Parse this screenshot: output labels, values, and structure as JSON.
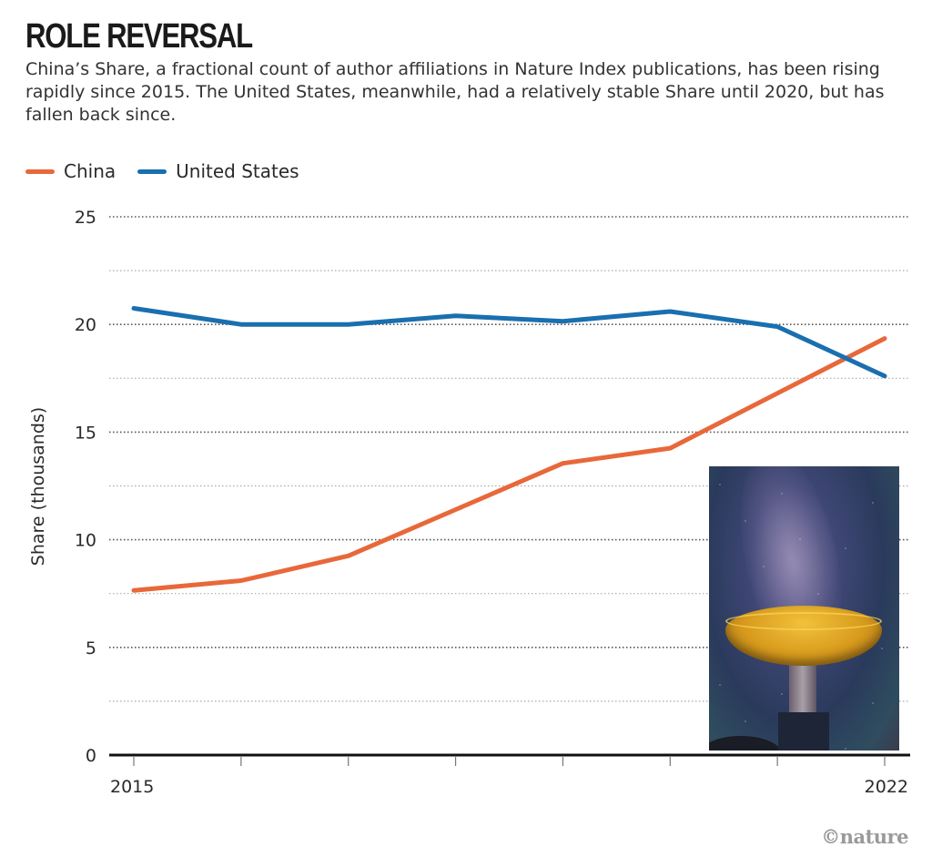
{
  "header": {
    "title": "ROLE REVERSAL",
    "subtitle": "China’s Share, a fractional count of author affiliations in Nature Index publications, has been rising rapidly since 2015. The United States, meanwhile, had a relatively stable Share until 2020, but has fallen back since."
  },
  "legend": {
    "items": [
      {
        "label": "China",
        "color": "#e8683a"
      },
      {
        "label": "United States",
        "color": "#1a6faf"
      }
    ]
  },
  "credit": "©nature",
  "photo": {
    "description": "radio telescope dish under the Milky Way at night"
  },
  "chart_data": {
    "type": "line",
    "title": "ROLE REVERSAL",
    "xlabel": "",
    "ylabel": "Share (thousands)",
    "x": [
      2015,
      2016,
      2017,
      2018,
      2019,
      2020,
      2021,
      2022
    ],
    "x_tick_labels": [
      "2015",
      "2022"
    ],
    "y_ticks": [
      0,
      5,
      10,
      15,
      20,
      25
    ],
    "y_tick_labels": [
      "0",
      "5",
      "10",
      "15",
      "20",
      "25"
    ],
    "ylim": [
      0,
      25
    ],
    "grid": true,
    "legend_position": "top-left",
    "series": [
      {
        "name": "China",
        "color": "#e8683a",
        "values": [
          7.65,
          8.1,
          9.25,
          11.4,
          13.55,
          14.25,
          16.8,
          19.35
        ]
      },
      {
        "name": "United States",
        "color": "#1a6faf",
        "values": [
          20.75,
          20.0,
          20.0,
          20.4,
          20.15,
          20.6,
          19.9,
          17.6
        ]
      }
    ]
  }
}
